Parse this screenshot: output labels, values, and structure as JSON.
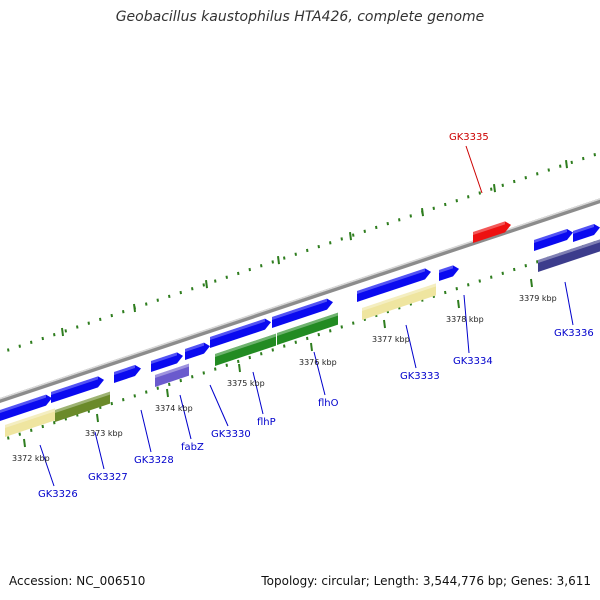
{
  "title": "Geobacillus kaustophilus HTA426, complete genome",
  "footer": {
    "accession": "Accession: NC_006510",
    "topology": "Topology: circular; Length: 3,544,776 bp; Genes: 3,611"
  },
  "ticks": [
    "3372 kbp",
    "3373 kbp",
    "3374 kbp",
    "3375 kbp",
    "3376 kbp",
    "3377 kbp",
    "3378 kbp",
    "3379 kbp"
  ],
  "gene_labels": [
    {
      "name": "GK3326",
      "color": "#0000cc"
    },
    {
      "name": "GK3327",
      "color": "#0000cc"
    },
    {
      "name": "GK3328",
      "color": "#0000cc"
    },
    {
      "name": "fabZ",
      "color": "#0000cc"
    },
    {
      "name": "GK3330",
      "color": "#0000cc"
    },
    {
      "name": "flhP",
      "color": "#0000cc"
    },
    {
      "name": "flhO",
      "color": "#0000cc"
    },
    {
      "name": "GK3333",
      "color": "#0000cc"
    },
    {
      "name": "GK3334",
      "color": "#0000cc"
    },
    {
      "name": "GK3335",
      "color": "#cc0000"
    },
    {
      "name": "GK3336",
      "color": "#0000cc"
    }
  ],
  "colors": {
    "backbone": "#8c8c8c",
    "tick_green": "#2e7d1e",
    "gene_blue": "#0a0af0",
    "gene_red": "#ee1111",
    "feat_yellow": "#efe5a0",
    "feat_olive": "#6b8a2a",
    "feat_green": "#228b22",
    "feat_purple": "#6a5acd",
    "feat_navy": "#3c3c8c"
  }
}
